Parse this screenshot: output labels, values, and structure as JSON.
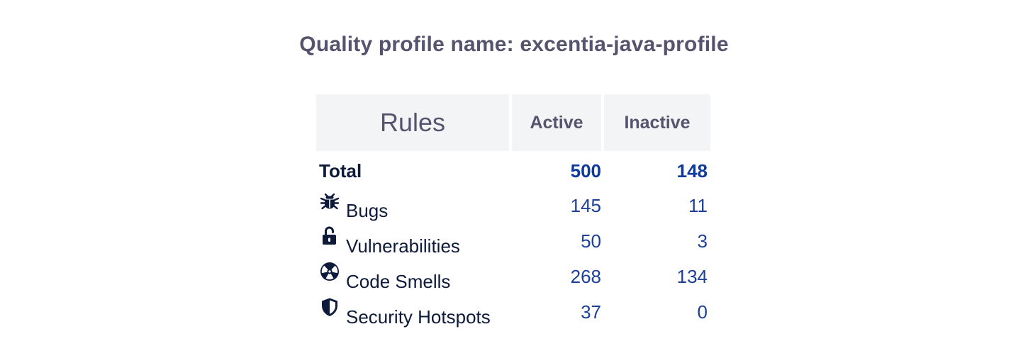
{
  "page": {
    "title": "Quality profile name: excentia-java-profile"
  },
  "table": {
    "headers": {
      "rules": "Rules",
      "active": "Active",
      "inactive": "Inactive"
    },
    "total": {
      "label": "Total",
      "active": "500",
      "inactive": "148"
    },
    "rows": [
      {
        "icon": "bug-icon",
        "label": "Bugs",
        "active": "145",
        "inactive": "11"
      },
      {
        "icon": "unlocked-padlock-icon",
        "label": "Vulnerabilities",
        "active": "50",
        "inactive": "3"
      },
      {
        "icon": "radiation-icon",
        "label": "Code Smells",
        "active": "268",
        "inactive": "134"
      },
      {
        "icon": "shield-icon",
        "label": "Security Hotspots",
        "active": "37",
        "inactive": "0"
      }
    ]
  },
  "colors": {
    "title": "#56536e",
    "header_bg": "#f3f4f6",
    "label_text": "#0d1a3a",
    "number_text": "#1c3f97"
  }
}
